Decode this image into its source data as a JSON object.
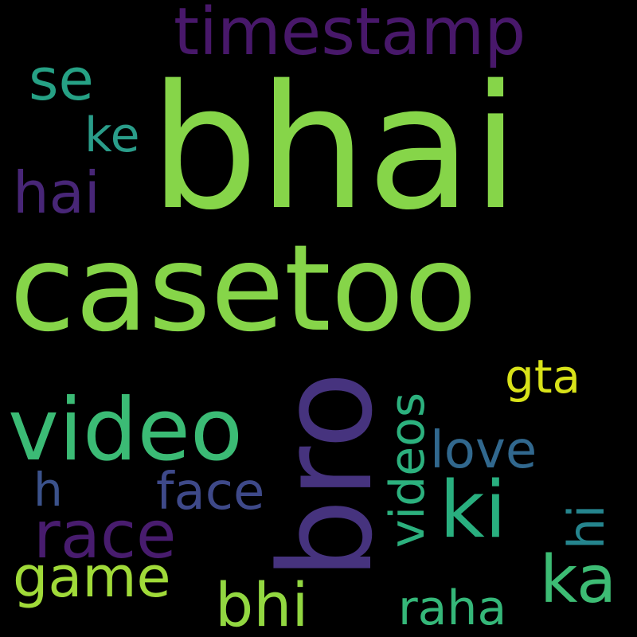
{
  "cloud": {
    "background": "#000000",
    "words": {
      "bhai": {
        "text": "bhai",
        "color": "#86d549"
      },
      "casetoo": {
        "text": "casetoo",
        "color": "#86d549"
      },
      "bro": {
        "text": "bro",
        "color": "#46337e"
      },
      "video": {
        "text": "video",
        "color": "#3bbb75"
      },
      "timestamp": {
        "text": "timestamp",
        "color": "#48186a"
      },
      "se": {
        "text": "se",
        "color": "#26a185"
      },
      "hai": {
        "text": "hai",
        "color": "#482677"
      },
      "ki": {
        "text": "ki",
        "color": "#29af7f"
      },
      "race": {
        "text": "race",
        "color": "#481c6e"
      },
      "game": {
        "text": "game",
        "color": "#a0da39"
      },
      "bhi": {
        "text": "bhi",
        "color": "#92d741"
      },
      "ka": {
        "text": "ka",
        "color": "#3dbc74"
      },
      "face": {
        "text": "face",
        "color": "#3e4989"
      },
      "love": {
        "text": "love",
        "color": "#31688e"
      },
      "gta": {
        "text": "gta",
        "color": "#d8e219"
      },
      "raha": {
        "text": "raha",
        "color": "#35b779"
      },
      "ke": {
        "text": "ke",
        "color": "#2a9d8a"
      },
      "h": {
        "text": "h",
        "color": "#3b528b"
      },
      "videos": {
        "text": "videos",
        "color": "#2cb17e"
      },
      "hi": {
        "text": "hi",
        "color": "#25858e"
      }
    }
  }
}
